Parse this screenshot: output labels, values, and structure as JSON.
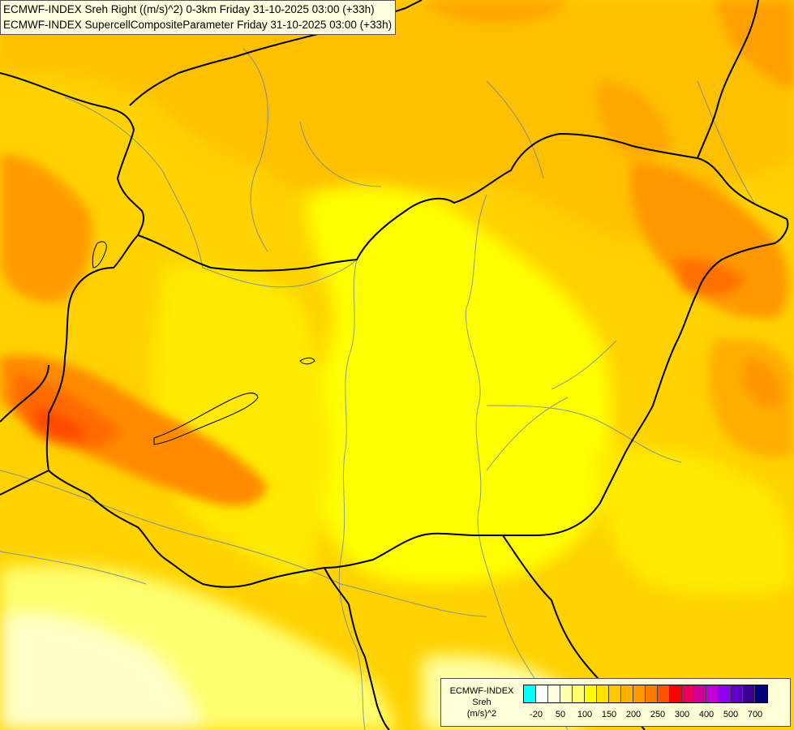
{
  "title": {
    "line1": "ECMWF-INDEX Sreh Right ((m/s)^2) 0-3km Friday 31-10-2025 03:00 (+33h)",
    "line2": "ECMWF-INDEX SupercellCompositeParameter Friday 31-10-2025 03:00 (+33h)"
  },
  "map": {
    "region": "Hungary",
    "field_palette": [
      "#ffffd8",
      "#ffff90",
      "#ffff00",
      "#ffe000",
      "#ffc000",
      "#ffa000",
      "#ff7000",
      "#ff3000"
    ]
  },
  "legend": {
    "line1": "ECMWF-INDEX",
    "line2": "Sreh",
    "line3": "(m/s)^2",
    "colors": [
      "#00ffff",
      "#ffffff",
      "#ffffe0",
      "#ffffb0",
      "#ffff70",
      "#ffff00",
      "#ffe000",
      "#ffc800",
      "#ffb000",
      "#ff9800",
      "#ff7800",
      "#ff5000",
      "#ff0000",
      "#e8005a",
      "#d0009a",
      "#c000d8",
      "#9000f0",
      "#6000c0",
      "#3a0090",
      "#000080"
    ],
    "ticks": [
      "-20",
      "50",
      "100",
      "150",
      "200",
      "250",
      "300",
      "400",
      "500",
      "700"
    ]
  }
}
